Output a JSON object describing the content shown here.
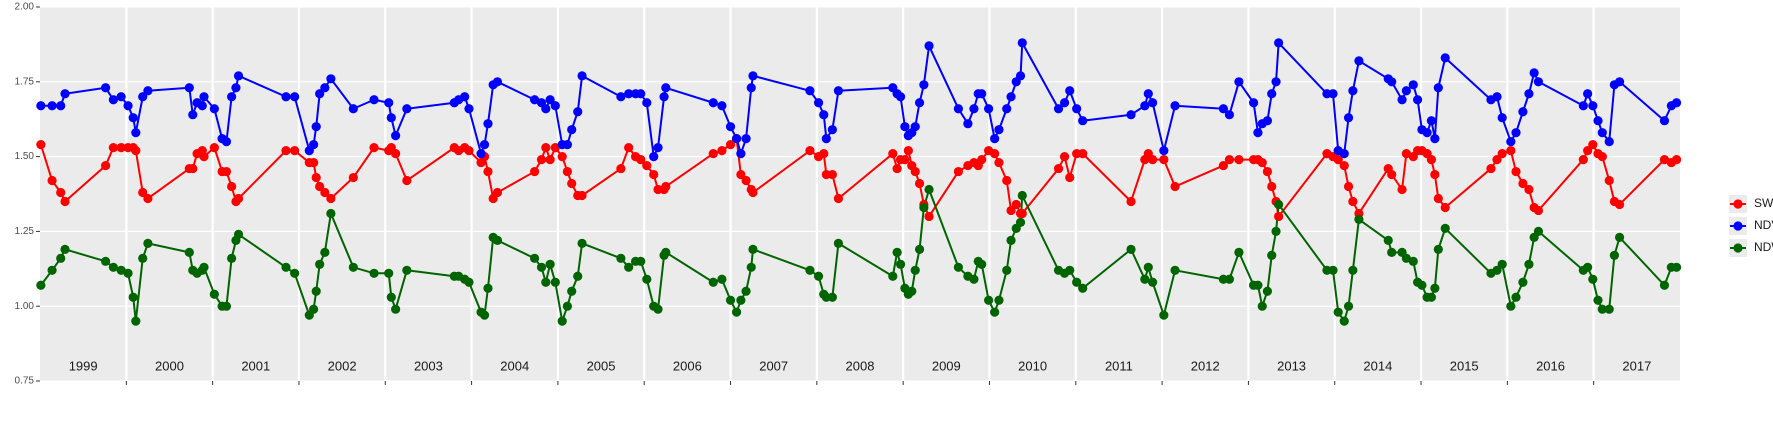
{
  "chart_data": {
    "type": "line",
    "x": [
      1999.01,
      1999.14,
      1999.24,
      1999.29,
      1999.76,
      1999.85,
      1999.94,
      2000.02,
      2000.08,
      2000.11,
      2000.19,
      2000.25,
      2000.73,
      2000.77,
      2000.82,
      2000.88,
      2000.9,
      2001.02,
      2001.11,
      2001.16,
      2001.22,
      2001.27,
      2001.3,
      2001.85,
      2001.95,
      2002.12,
      2002.17,
      2002.2,
      2002.24,
      2002.3,
      2002.37,
      2002.63,
      2002.87,
      2003.04,
      2003.07,
      2003.12,
      2003.25,
      2003.8,
      2003.85,
      2003.92,
      2003.97,
      2004.11,
      2004.15,
      2004.19,
      2004.25,
      2004.3,
      2004.73,
      2004.81,
      2004.86,
      2004.91,
      2004.97,
      2005.05,
      2005.11,
      2005.16,
      2005.23,
      2005.28,
      2005.73,
      2005.82,
      2005.9,
      2005.96,
      2006.03,
      2006.11,
      2006.16,
      2006.23,
      2006.25,
      2006.8,
      2006.9,
      2007,
      2007.07,
      2007.12,
      2007.18,
      2007.24,
      2007.26,
      2007.92,
      2008.02,
      2008.08,
      2008.11,
      2008.18,
      2008.25,
      2008.88,
      2008.93,
      2008.97,
      2009.02,
      2009.06,
      2009.1,
      2009.14,
      2009.19,
      2009.24,
      2009.3,
      2009.64,
      2009.75,
      2009.82,
      2009.87,
      2009.91,
      2009.99,
      2010.06,
      2010.11,
      2010.2,
      2010.25,
      2010.31,
      2010.36,
      2010.38,
      2010.8,
      2010.87,
      2010.93,
      2011.01,
      2011.08,
      2011.64,
      2011.8,
      2011.84,
      2011.89,
      2012.02,
      2012.15,
      2012.71,
      2012.78,
      2012.89,
      2013.06,
      2013.11,
      2013.16,
      2013.22,
      2013.27,
      2013.32,
      2013.35,
      2013.91,
      2013.98,
      2014.04,
      2014.11,
      2014.16,
      2014.21,
      2014.28,
      2014.62,
      2014.66,
      2014.78,
      2014.83,
      2014.91,
      2014.96,
      2015.01,
      2015.07,
      2015.12,
      2015.16,
      2015.2,
      2015.28,
      2015.81,
      2015.88,
      2015.94,
      2016.04,
      2016.1,
      2016.18,
      2016.25,
      2016.31,
      2016.36,
      2016.88,
      2016.93,
      2016.99,
      2017.05,
      2017.1,
      2017.18,
      2017.24,
      2017.3,
      2017.82,
      2017.9,
      2017.96
    ],
    "series": [
      {
        "name": "SWIR",
        "color": "#ff0000",
        "values": [
          1.54,
          1.42,
          1.38,
          1.35,
          1.47,
          1.53,
          1.53,
          1.53,
          1.53,
          1.52,
          1.38,
          1.36,
          1.46,
          1.46,
          1.51,
          1.52,
          1.5,
          1.53,
          1.45,
          1.45,
          1.4,
          1.35,
          1.36,
          1.52,
          1.52,
          1.48,
          1.48,
          1.43,
          1.4,
          1.38,
          1.36,
          1.43,
          1.53,
          1.52,
          1.53,
          1.51,
          1.42,
          1.53,
          1.52,
          1.53,
          1.52,
          1.48,
          1.5,
          1.45,
          1.36,
          1.38,
          1.45,
          1.49,
          1.53,
          1.49,
          1.53,
          1.5,
          1.45,
          1.41,
          1.37,
          1.37,
          1.46,
          1.53,
          1.5,
          1.49,
          1.47,
          1.44,
          1.39,
          1.39,
          1.4,
          1.51,
          1.52,
          1.54,
          1.56,
          1.44,
          1.42,
          1.39,
          1.38,
          1.52,
          1.5,
          1.51,
          1.44,
          1.44,
          1.36,
          1.51,
          1.46,
          1.49,
          1.49,
          1.52,
          1.47,
          1.45,
          1.41,
          1.34,
          1.3,
          1.45,
          1.47,
          1.48,
          1.47,
          1.49,
          1.52,
          1.51,
          1.48,
          1.42,
          1.32,
          1.34,
          1.31,
          1.31,
          1.46,
          1.5,
          1.43,
          1.51,
          1.51,
          1.35,
          1.49,
          1.51,
          1.49,
          1.49,
          1.4,
          1.47,
          1.49,
          1.49,
          1.49,
          1.49,
          1.48,
          1.45,
          1.4,
          1.35,
          1.3,
          1.51,
          1.5,
          1.49,
          1.47,
          1.4,
          1.35,
          1.31,
          1.46,
          1.44,
          1.39,
          1.51,
          1.5,
          1.52,
          1.52,
          1.51,
          1.49,
          1.44,
          1.36,
          1.33,
          1.46,
          1.49,
          1.51,
          1.52,
          1.45,
          1.41,
          1.39,
          1.33,
          1.32,
          1.49,
          1.52,
          1.54,
          1.51,
          1.5,
          1.42,
          1.35,
          1.34,
          1.49,
          1.48,
          1.49
        ]
      },
      {
        "name": "NDVI",
        "color": "#0000ff",
        "values": [
          1.67,
          1.67,
          1.67,
          1.71,
          1.73,
          1.69,
          1.7,
          1.67,
          1.63,
          1.58,
          1.7,
          1.72,
          1.73,
          1.64,
          1.68,
          1.67,
          1.7,
          1.66,
          1.56,
          1.55,
          1.7,
          1.73,
          1.77,
          1.7,
          1.7,
          1.52,
          1.54,
          1.6,
          1.71,
          1.73,
          1.76,
          1.66,
          1.69,
          1.68,
          1.63,
          1.57,
          1.66,
          1.68,
          1.69,
          1.7,
          1.66,
          1.51,
          1.54,
          1.61,
          1.74,
          1.75,
          1.69,
          1.68,
          1.66,
          1.69,
          1.67,
          1.54,
          1.54,
          1.59,
          1.65,
          1.77,
          1.7,
          1.71,
          1.71,
          1.71,
          1.68,
          1.5,
          1.53,
          1.7,
          1.73,
          1.68,
          1.67,
          1.6,
          1.56,
          1.51,
          1.56,
          1.73,
          1.77,
          1.72,
          1.68,
          1.64,
          1.56,
          1.59,
          1.72,
          1.73,
          1.71,
          1.7,
          1.6,
          1.57,
          1.58,
          1.6,
          1.68,
          1.74,
          1.87,
          1.66,
          1.61,
          1.66,
          1.71,
          1.71,
          1.66,
          1.56,
          1.59,
          1.66,
          1.7,
          1.75,
          1.77,
          1.88,
          1.66,
          1.68,
          1.72,
          1.66,
          1.62,
          1.64,
          1.67,
          1.71,
          1.68,
          1.52,
          1.67,
          1.66,
          1.64,
          1.75,
          1.68,
          1.58,
          1.61,
          1.62,
          1.71,
          1.75,
          1.88,
          1.71,
          1.71,
          1.52,
          1.51,
          1.63,
          1.72,
          1.82,
          1.76,
          1.75,
          1.69,
          1.72,
          1.74,
          1.69,
          1.59,
          1.58,
          1.62,
          1.56,
          1.73,
          1.83,
          1.69,
          1.7,
          1.63,
          1.55,
          1.58,
          1.65,
          1.71,
          1.78,
          1.75,
          1.67,
          1.71,
          1.67,
          1.62,
          1.58,
          1.55,
          1.74,
          1.75,
          1.62,
          1.67,
          1.68
        ]
      },
      {
        "name": "NDWI",
        "color": "#006400",
        "values": [
          1.07,
          1.12,
          1.16,
          1.19,
          1.15,
          1.13,
          1.12,
          1.11,
          1.03,
          0.95,
          1.16,
          1.21,
          1.18,
          1.12,
          1.11,
          1.12,
          1.13,
          1.04,
          1.0,
          1.0,
          1.16,
          1.22,
          1.24,
          1.13,
          1.11,
          0.97,
          0.99,
          1.05,
          1.14,
          1.18,
          1.31,
          1.13,
          1.11,
          1.11,
          1.03,
          0.99,
          1.12,
          1.1,
          1.1,
          1.09,
          1.08,
          0.98,
          0.97,
          1.06,
          1.23,
          1.22,
          1.16,
          1.13,
          1.08,
          1.14,
          1.08,
          0.95,
          1.0,
          1.05,
          1.1,
          1.21,
          1.16,
          1.13,
          1.15,
          1.15,
          1.09,
          1.0,
          0.99,
          1.17,
          1.18,
          1.08,
          1.09,
          1.02,
          0.98,
          1.02,
          1.05,
          1.13,
          1.19,
          1.12,
          1.1,
          1.04,
          1.03,
          1.03,
          1.21,
          1.1,
          1.18,
          1.14,
          1.06,
          1.04,
          1.05,
          1.12,
          1.19,
          1.33,
          1.39,
          1.13,
          1.1,
          1.09,
          1.15,
          1.14,
          1.02,
          0.98,
          1.02,
          1.12,
          1.22,
          1.26,
          1.28,
          1.37,
          1.12,
          1.11,
          1.12,
          1.08,
          1.06,
          1.19,
          1.09,
          1.13,
          1.08,
          0.97,
          1.12,
          1.09,
          1.09,
          1.18,
          1.07,
          1.07,
          1.0,
          1.05,
          1.17,
          1.25,
          1.34,
          1.12,
          1.12,
          0.98,
          0.95,
          1.0,
          1.12,
          1.29,
          1.22,
          1.18,
          1.18,
          1.16,
          1.15,
          1.08,
          1.07,
          1.03,
          1.03,
          1.06,
          1.19,
          1.26,
          1.11,
          1.12,
          1.14,
          1.0,
          1.03,
          1.08,
          1.14,
          1.23,
          1.25,
          1.12,
          1.13,
          1.09,
          1.02,
          0.99,
          0.99,
          1.17,
          1.23,
          1.07,
          1.13,
          1.13
        ]
      }
    ],
    "xlim": [
      1999,
      2018
    ],
    "xticks": [
      2000,
      2001,
      2002,
      2003,
      2004,
      2005,
      2006,
      2007,
      2008,
      2009,
      2010,
      2011,
      2012,
      2013,
      2014,
      2015,
      2016,
      2017
    ],
    "x_labels": [
      {
        "value": 1999.5,
        "label": "1999"
      },
      {
        "value": 2000.5,
        "label": "2000"
      },
      {
        "value": 2001.5,
        "label": "2001"
      },
      {
        "value": 2002.5,
        "label": "2002"
      },
      {
        "value": 2003.5,
        "label": "2003"
      },
      {
        "value": 2004.5,
        "label": "2004"
      },
      {
        "value": 2005.5,
        "label": "2005"
      },
      {
        "value": 2006.5,
        "label": "2006"
      },
      {
        "value": 2007.5,
        "label": "2007"
      },
      {
        "value": 2008.5,
        "label": "2008"
      },
      {
        "value": 2009.5,
        "label": "2009"
      },
      {
        "value": 2010.5,
        "label": "2010"
      },
      {
        "value": 2011.5,
        "label": "2011"
      },
      {
        "value": 2012.5,
        "label": "2012"
      },
      {
        "value": 2013.5,
        "label": "2013"
      },
      {
        "value": 2014.5,
        "label": "2014"
      },
      {
        "value": 2015.5,
        "label": "2015"
      },
      {
        "value": 2016.5,
        "label": "2016"
      },
      {
        "value": 2017.5,
        "label": "2017"
      }
    ],
    "ylim": [
      0.75,
      2
    ],
    "yticks": [
      0.75,
      {
        "value": 1,
        "label": "1.00"
      },
      1.25,
      {
        "value": 1.5,
        "label": "1.50"
      },
      1.75,
      {
        "value": 2,
        "label": "2.00"
      }
    ],
    "grid": true,
    "legend": "right"
  }
}
